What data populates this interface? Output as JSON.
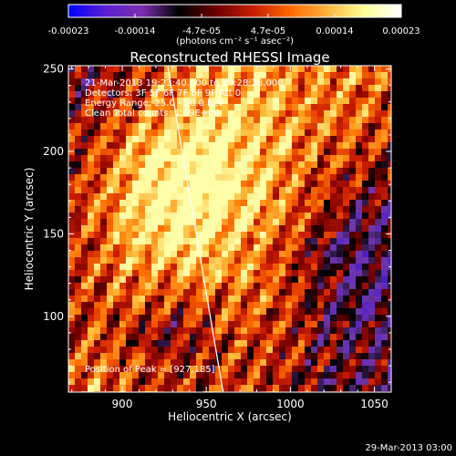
{
  "colorbar": {
    "stops": [
      "#0000ff",
      "#5a1fd0",
      "#7a2fb0",
      "#000000",
      "#6e0000",
      "#c81e00",
      "#ff6a00",
      "#ffb43c",
      "#ffff9a",
      "#ffffff"
    ],
    "tick_labels": [
      "-0.00023",
      "-0.00014",
      "-4.7e-05",
      "4.7e-05",
      "0.00014",
      "0.00023"
    ],
    "unit_label": "(photons cm⁻² s⁻¹ asec⁻²)"
  },
  "chart_data": {
    "type": "heatmap",
    "title": "Reconstructed RHESSI Image",
    "xlabel": "Heliocentric X (arcsec)",
    "ylabel": "Heliocentric Y (arcsec)",
    "xlim": [
      868,
      1060
    ],
    "ylim": [
      54,
      252
    ],
    "x_ticks": [
      "900",
      "950",
      "1000",
      "1050"
    ],
    "y_ticks": [
      "100",
      "150",
      "200",
      "250"
    ],
    "x_tick_values": [
      900,
      950,
      1000,
      1050
    ],
    "y_tick_values": [
      100,
      150,
      200,
      250
    ],
    "limb_line": [
      [
        927,
        252
      ],
      [
        960,
        54
      ]
    ],
    "annotations": [
      "21-Mar-2013 19:23:40.000 to 19:28:28.000",
      "Detectors: 3F 5F 6F 7F 8F 9F  Att 0",
      "Energy Range: 25.0 - 50.0 keV",
      "Clean     Total counts: 1.09E+04"
    ],
    "peak_label": "Position of Peak = [927,185]",
    "peak": [
      927,
      185
    ]
  },
  "footer": {
    "timestamp": "29-Mar-2013 03:00"
  }
}
